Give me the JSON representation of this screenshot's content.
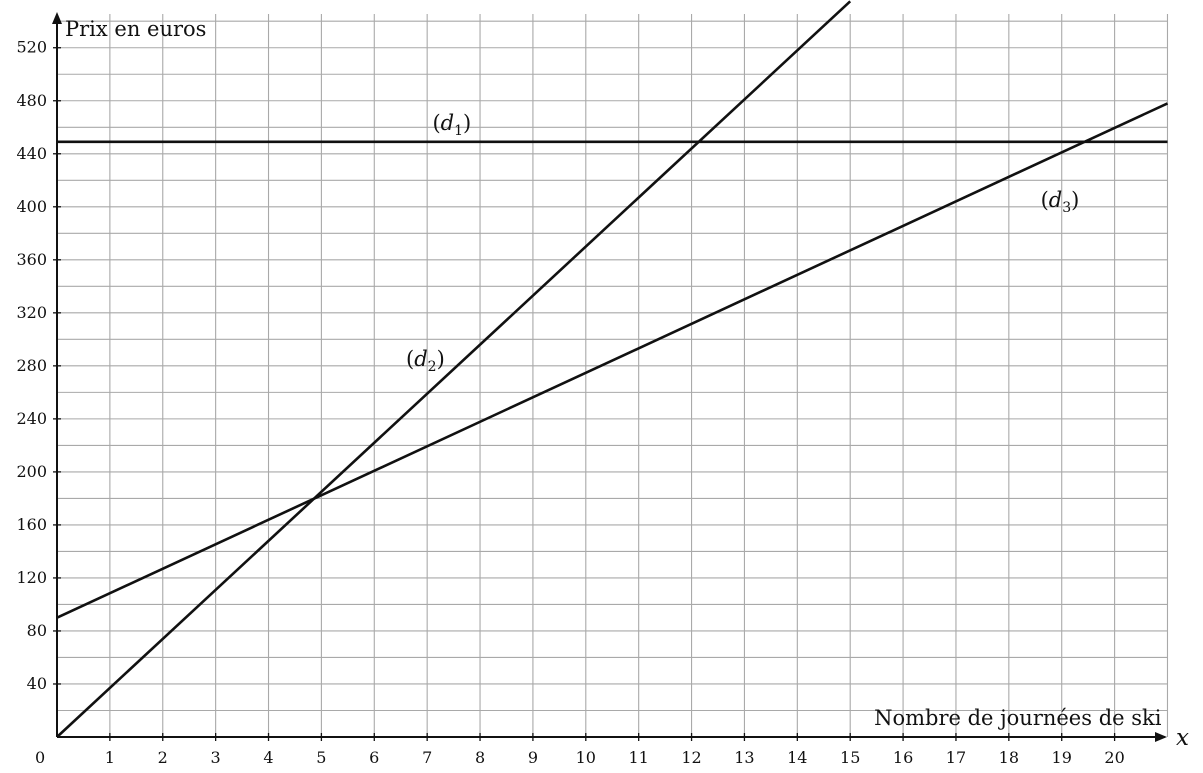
{
  "chart_data": {
    "type": "line",
    "xlabel": "Nombre de journées de ski",
    "ylabel": "Prix en euros",
    "x_var": "x",
    "origin_label": "0",
    "xlim": [
      0,
      21
    ],
    "ylim": [
      0,
      540
    ],
    "x_ticks": [
      1,
      2,
      3,
      4,
      5,
      6,
      7,
      8,
      9,
      10,
      11,
      12,
      13,
      14,
      15,
      16,
      17,
      18,
      19,
      20
    ],
    "y_ticks": [
      40,
      80,
      120,
      160,
      200,
      240,
      280,
      320,
      360,
      400,
      440,
      480,
      520
    ],
    "grid": true,
    "series": [
      {
        "name": "d1",
        "x": [
          0,
          21
        ],
        "y": [
          449,
          449
        ]
      },
      {
        "name": "d2",
        "x": [
          0,
          15
        ],
        "y": [
          0,
          555
        ]
      },
      {
        "name": "d3",
        "x": [
          0,
          21
        ],
        "y": [
          90,
          478
        ]
      }
    ],
    "annotations": [
      {
        "series": "d1",
        "base": "d",
        "sub": "1",
        "x": 7.1,
        "y": 458
      },
      {
        "series": "d2",
        "base": "d",
        "sub": "2",
        "x": 6.6,
        "y": 280
      },
      {
        "series": "d3",
        "base": "d",
        "sub": "3",
        "x": 18.6,
        "y": 400
      }
    ]
  }
}
